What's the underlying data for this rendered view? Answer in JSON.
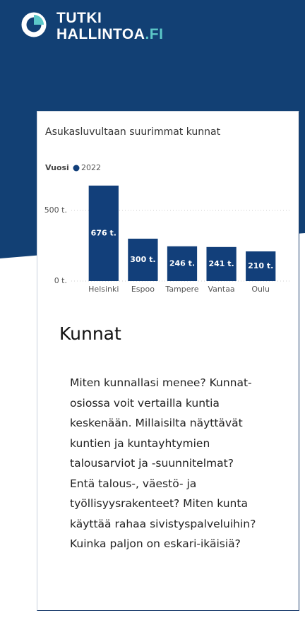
{
  "header": {
    "logo_line1": "TUTKI",
    "logo_line2": "HALLINTOA",
    "logo_suffix": ".FI"
  },
  "chart_data": {
    "type": "bar",
    "title": "Asukasluvultaan suurimmat kunnat",
    "legend_title": "Vuosi",
    "categories": [
      "Helsinki",
      "Espoo",
      "Tampere",
      "Vantaa",
      "Oulu"
    ],
    "series": [
      {
        "name": "2022",
        "color": "#123f7a",
        "values": [
          676,
          300,
          246,
          241,
          210
        ],
        "value_labels": [
          "676 t.",
          "300 t.",
          "246 t.",
          "241 t.",
          "210 t."
        ]
      }
    ],
    "ylim": [
      0,
      700
    ],
    "yticks": [
      {
        "value": 0,
        "label": "0 t."
      },
      {
        "value": 500,
        "label": "500 t."
      }
    ],
    "grid": true
  },
  "section": {
    "heading": "Kunnat",
    "text": "Miten kunnallasi menee? Kunnat-osiossa voit vertailla kuntia keskenään. Millaisilta näyttävät kuntien ja kuntayhtymien talousarviot ja -suunnitelmat? Entä talous-, väestö- ja työllisyysrakenteet? Miten kunta käyttää rahaa sivistyspalveluihin? Kuinka paljon on eskari-ikäisiä?"
  }
}
